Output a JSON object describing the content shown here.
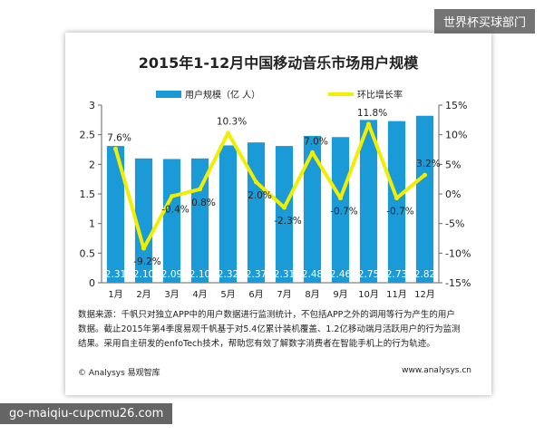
{
  "watermark_top": "世界杯买球部门",
  "watermark_bottom": "go-maiqiu-cupcmu26.com",
  "notes": [
    "数据来源：千帆只对独立APP中的用户数据进行监测统计，不包括APP之外的调用等行为产生的用户",
    "数据。截止2015年第4季度易观千帆基于对5.4亿累计装机覆盖、1.2亿移动端月活跃用户的行为监测",
    "结果。采用自主研发的enfoTech技术，帮助您有效了解数字消费者在智能手机上的行为轨迹。"
  ],
  "footer_left": "© Analysys 易观智库",
  "footer_right": "www.analysys.cn",
  "colors": {
    "bar": "#1a9ad6",
    "line": "#f2ee00"
  },
  "chart_data": {
    "type": "bar",
    "title": "2015年1-12月中国移动音乐市场用户规模",
    "categories": [
      "1月",
      "2月",
      "3月",
      "4月",
      "5月",
      "6月",
      "7月",
      "8月",
      "9月",
      "10月",
      "11月",
      "12月"
    ],
    "series": [
      {
        "name": "用户规模（亿 人）",
        "type": "bar",
        "axis": "left",
        "values": [
          2.31,
          2.1,
          2.09,
          2.1,
          2.32,
          2.37,
          2.31,
          2.48,
          2.46,
          2.75,
          2.73,
          2.82
        ],
        "labels": [
          "2.31",
          "2.10",
          "2.09",
          "2.10",
          "2.32",
          "2.37",
          "2.31",
          "2.48",
          "2.46",
          "2.75",
          "2.73",
          "2.82"
        ]
      },
      {
        "name": "环比增长率",
        "type": "line",
        "axis": "right",
        "values": [
          7.6,
          -9.2,
          -0.4,
          0.8,
          10.3,
          2.0,
          -2.3,
          7.0,
          -0.7,
          11.8,
          -0.7,
          3.2
        ],
        "labels": [
          "7.6%",
          "-9.2%",
          "-0.4%",
          "0.8%",
          "10.3%",
          "2.0%",
          "-2.3%",
          "7.0%",
          "-0.7%",
          "11.8%",
          "-0.7%",
          "3.2%"
        ]
      }
    ],
    "y_left": {
      "ylim": [
        0,
        3
      ],
      "ticks": [
        0,
        0.5,
        1,
        1.5,
        2,
        2.5,
        3
      ],
      "tick_labels": [
        "0",
        "0.5",
        "1",
        "1.5",
        "2",
        "2.5",
        "3"
      ]
    },
    "y_right": {
      "ylim": [
        -15,
        15
      ],
      "ticks": [
        -15,
        -10,
        -5,
        0,
        5,
        10,
        15
      ],
      "tick_labels": [
        "-15%",
        "-10%",
        "-5%",
        "0%",
        "5%",
        "10%",
        "15%"
      ]
    },
    "grid": false,
    "legend": "top"
  }
}
